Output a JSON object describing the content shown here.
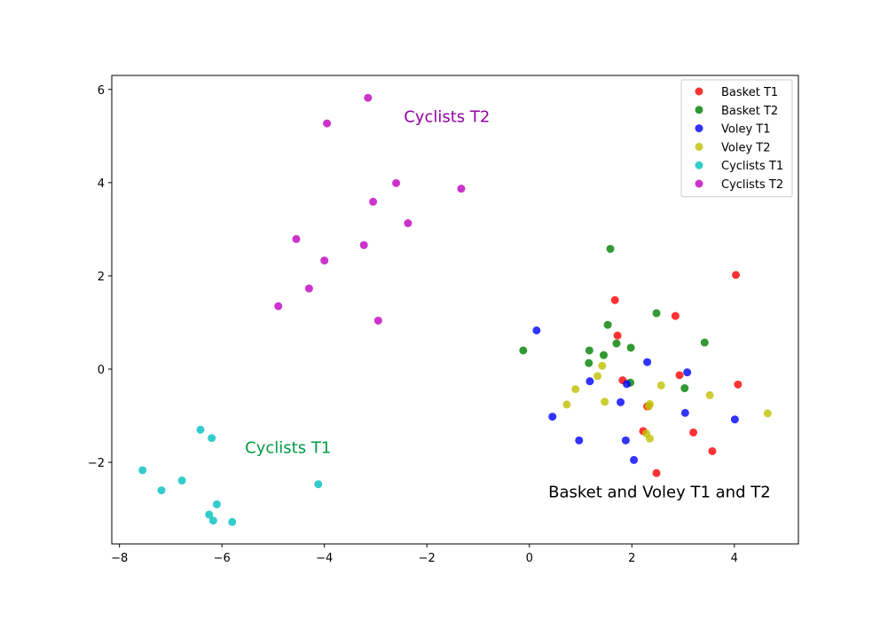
{
  "chart_data": {
    "type": "scatter",
    "xlim": [
      -8.15,
      5.25
    ],
    "ylim": [
      -3.75,
      6.3
    ],
    "xticks": [
      -8,
      -6,
      -4,
      -2,
      0,
      2,
      4
    ],
    "yticks": [
      -2,
      0,
      2,
      4,
      6
    ],
    "xtick_labels": [
      "−8",
      "−6",
      "−4",
      "−2",
      "0",
      "2",
      "4"
    ],
    "ytick_labels": [
      "−2",
      "0",
      "2",
      "4",
      "6"
    ],
    "grid": false,
    "legend_position": "top-right",
    "series": [
      {
        "name": "Basket T1",
        "color": "#ff0000",
        "points": [
          [
            4.03,
            2.02
          ],
          [
            1.67,
            1.48
          ],
          [
            2.85,
            1.14
          ],
          [
            1.72,
            0.72
          ],
          [
            2.93,
            -0.13
          ],
          [
            1.82,
            -0.24
          ],
          [
            4.07,
            -0.33
          ],
          [
            2.3,
            -0.8
          ],
          [
            2.22,
            -1.33
          ],
          [
            3.2,
            -1.36
          ],
          [
            3.57,
            -1.76
          ],
          [
            2.48,
            -2.23
          ]
        ]
      },
      {
        "name": "Basket T2",
        "color": "#008000",
        "points": [
          [
            1.58,
            2.58
          ],
          [
            2.48,
            1.2
          ],
          [
            1.53,
            0.95
          ],
          [
            3.42,
            0.57
          ],
          [
            1.7,
            0.55
          ],
          [
            1.98,
            0.46
          ],
          [
            -0.12,
            0.4
          ],
          [
            1.17,
            0.4
          ],
          [
            1.45,
            0.3
          ],
          [
            1.16,
            0.13
          ],
          [
            1.97,
            -0.29
          ],
          [
            3.03,
            -0.41
          ]
        ]
      },
      {
        "name": "Voley T1",
        "color": "#0000ff",
        "points": [
          [
            0.14,
            0.83
          ],
          [
            2.3,
            0.15
          ],
          [
            3.08,
            -0.07
          ],
          [
            1.18,
            -0.26
          ],
          [
            1.9,
            -0.32
          ],
          [
            1.78,
            -0.71
          ],
          [
            3.04,
            -0.94
          ],
          [
            0.45,
            -1.02
          ],
          [
            4.01,
            -1.08
          ],
          [
            0.97,
            -1.53
          ],
          [
            1.88,
            -1.53
          ],
          [
            2.04,
            -1.95
          ]
        ]
      },
      {
        "name": "Voley T2",
        "color": "#bfbf00",
        "points": [
          [
            1.42,
            0.07
          ],
          [
            1.33,
            -0.15
          ],
          [
            2.57,
            -0.35
          ],
          [
            0.9,
            -0.43
          ],
          [
            3.52,
            -0.56
          ],
          [
            1.47,
            -0.7
          ],
          [
            2.35,
            -0.75
          ],
          [
            0.73,
            -0.76
          ],
          [
            2.33,
            -0.8
          ],
          [
            4.65,
            -0.95
          ],
          [
            2.28,
            -1.38
          ],
          [
            2.35,
            -1.49
          ]
        ]
      },
      {
        "name": "Cyclists T1",
        "color": "#00bfbf",
        "points": [
          [
            -6.42,
            -1.3
          ],
          [
            -6.2,
            -1.48
          ],
          [
            -7.55,
            -2.17
          ],
          [
            -6.78,
            -2.39
          ],
          [
            -4.12,
            -2.47
          ],
          [
            -7.18,
            -2.6
          ],
          [
            -6.1,
            -2.9
          ],
          [
            -6.25,
            -3.12
          ],
          [
            -6.17,
            -3.25
          ],
          [
            -5.8,
            -3.28
          ]
        ]
      },
      {
        "name": "Cyclists T2",
        "color": "#bf00bf",
        "points": [
          [
            -3.15,
            5.82
          ],
          [
            -3.95,
            5.27
          ],
          [
            -2.6,
            3.99
          ],
          [
            -1.33,
            3.87
          ],
          [
            -3.05,
            3.59
          ],
          [
            -2.37,
            3.13
          ],
          [
            -4.55,
            2.79
          ],
          [
            -3.23,
            2.66
          ],
          [
            -4.0,
            2.33
          ],
          [
            -4.3,
            1.73
          ],
          [
            -4.9,
            1.35
          ],
          [
            -2.95,
            1.04
          ]
        ]
      }
    ],
    "annotations": [
      {
        "text": "Cyclists T2",
        "x": -2.45,
        "y": 5.3,
        "color": "#9400a6"
      },
      {
        "text": "Cyclists T1",
        "x": -5.55,
        "y": -1.8,
        "color": "#009a46"
      },
      {
        "text": "Basket and Voley T1 and T2",
        "x": 0.37,
        "y": -2.75,
        "color": "#000000"
      }
    ]
  }
}
